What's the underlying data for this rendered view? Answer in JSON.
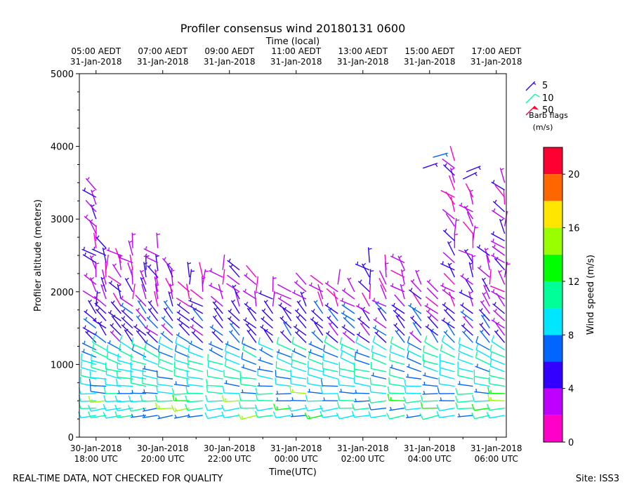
{
  "chart_data": {
    "type": "wind-barb profile",
    "title": "Profiler consensus wind 20180131 0600",
    "xlabel": "Time(UTC)",
    "top_axis_label": "Time (local)",
    "ylabel": "Profiler altitude (meters)",
    "ylim": [
      0,
      5000
    ],
    "y_ticks": [
      "0",
      "1000",
      "2000",
      "3000",
      "4000",
      "5000"
    ],
    "x_range_hours": [
      -0.5,
      12.3
    ],
    "bottom_ticks": [
      {
        "hour": 0,
        "line1": "30-Jan-2018",
        "line2": "18:00 UTC"
      },
      {
        "hour": 2,
        "line1": "30-Jan-2018",
        "line2": "20:00 UTC"
      },
      {
        "hour": 4,
        "line1": "30-Jan-2018",
        "line2": "22:00 UTC"
      },
      {
        "hour": 6,
        "line1": "31-Jan-2018",
        "line2": "00:00 UTC"
      },
      {
        "hour": 8,
        "line1": "31-Jan-2018",
        "line2": "02:00 UTC"
      },
      {
        "hour": 10,
        "line1": "31-Jan-2018",
        "line2": "04:00 UTC"
      },
      {
        "hour": 12,
        "line1": "31-Jan-2018",
        "line2": "06:00 UTC"
      }
    ],
    "top_ticks": [
      {
        "hour": 0,
        "line1": "05:00 AEDT",
        "line2": "31-Jan-2018"
      },
      {
        "hour": 2,
        "line1": "07:00 AEDT",
        "line2": "31-Jan-2018"
      },
      {
        "hour": 4,
        "line1": "09:00 AEDT",
        "line2": "31-Jan-2018"
      },
      {
        "hour": 6,
        "line1": "11:00 AEDT",
        "line2": "31-Jan-2018"
      },
      {
        "hour": 8,
        "line1": "13:00 AEDT",
        "line2": "31-Jan-2018"
      },
      {
        "hour": 10,
        "line1": "15:00 AEDT",
        "line2": "31-Jan-2018"
      },
      {
        "hour": 12,
        "line1": "17:00 AEDT",
        "line2": "31-Jan-2018"
      }
    ],
    "barb_legend": {
      "items": [
        {
          "label": "5",
          "speed": 5
        },
        {
          "label": "10",
          "speed": 10
        },
        {
          "label": "50",
          "speed": 50
        }
      ],
      "title_line1": "Barb flags",
      "title_line2": "(m/s)"
    },
    "colorbar": {
      "label": "Wind speed (m/s)",
      "range": [
        0,
        22
      ],
      "ticks": [
        "0",
        "4",
        "8",
        "12",
        "16",
        "20"
      ],
      "levels": [
        {
          "from": 0,
          "to": 2,
          "color": "#ff00c8"
        },
        {
          "from": 2,
          "to": 4,
          "color": "#c000ff"
        },
        {
          "from": 4,
          "to": 6,
          "color": "#3300ff"
        },
        {
          "from": 6,
          "to": 8,
          "color": "#0066ff"
        },
        {
          "from": 8,
          "to": 10,
          "color": "#00e6ff"
        },
        {
          "from": 10,
          "to": 12,
          "color": "#00ff99"
        },
        {
          "from": 12,
          "to": 14,
          "color": "#00ff00"
        },
        {
          "from": 14,
          "to": 16,
          "color": "#99ff00"
        },
        {
          "from": 16,
          "to": 18,
          "color": "#ffe600"
        },
        {
          "from": 18,
          "to": 20,
          "color": "#ff6600"
        },
        {
          "from": 20,
          "to": 22,
          "color": "#ff0033"
        }
      ]
    },
    "barb_levels": {
      "start_m": 300,
      "step_m": 100
    },
    "profiles": [
      {
        "hour": 0.0,
        "top": 3400
      },
      {
        "hour": 0.3,
        "top": 2600
      },
      {
        "hour": 0.75,
        "top": 2500
      },
      {
        "hour": 1.1,
        "top": 2600
      },
      {
        "hour": 1.5,
        "top": 2300
      },
      {
        "hour": 1.85,
        "top": 2600
      },
      {
        "hour": 2.3,
        "top": 2300
      },
      {
        "hour": 2.8,
        "top": 2200
      },
      {
        "hour": 3.2,
        "top": 2200
      },
      {
        "hour": 3.8,
        "top": 2300
      },
      {
        "hour": 4.3,
        "top": 2300
      },
      {
        "hour": 4.8,
        "top": 2250
      },
      {
        "hour": 5.3,
        "top": 2050
      },
      {
        "hour": 5.85,
        "top": 2000
      },
      {
        "hour": 6.3,
        "top": 2100
      },
      {
        "hour": 6.8,
        "top": 2100
      },
      {
        "hour": 7.25,
        "top": 2100
      },
      {
        "hour": 7.75,
        "top": 2000
      },
      {
        "hour": 8.2,
        "top": 2400
      },
      {
        "hour": 8.7,
        "top": 2300
      },
      {
        "hour": 9.25,
        "top": 2400
      },
      {
        "hour": 9.75,
        "top": 2100
      },
      {
        "hour": 10.25,
        "top": 2000
      },
      {
        "hour": 10.75,
        "top": 3800
      },
      {
        "hour": 11.3,
        "top": 3300
      },
      {
        "hour": 11.8,
        "top": 2500
      },
      {
        "hour": 12.25,
        "top": 3500
      }
    ],
    "upper_isolated": [
      {
        "hour": 9.8,
        "alt": 3700
      },
      {
        "hour": 10.1,
        "alt": 3850
      },
      {
        "hour": 11.0,
        "alt": 3550
      },
      {
        "hour": 11.1,
        "alt": 3650
      }
    ]
  },
  "footer": {
    "left_note": "REAL-TIME DATA, NOT CHECKED FOR QUALITY",
    "site": "Site: ISS3"
  }
}
